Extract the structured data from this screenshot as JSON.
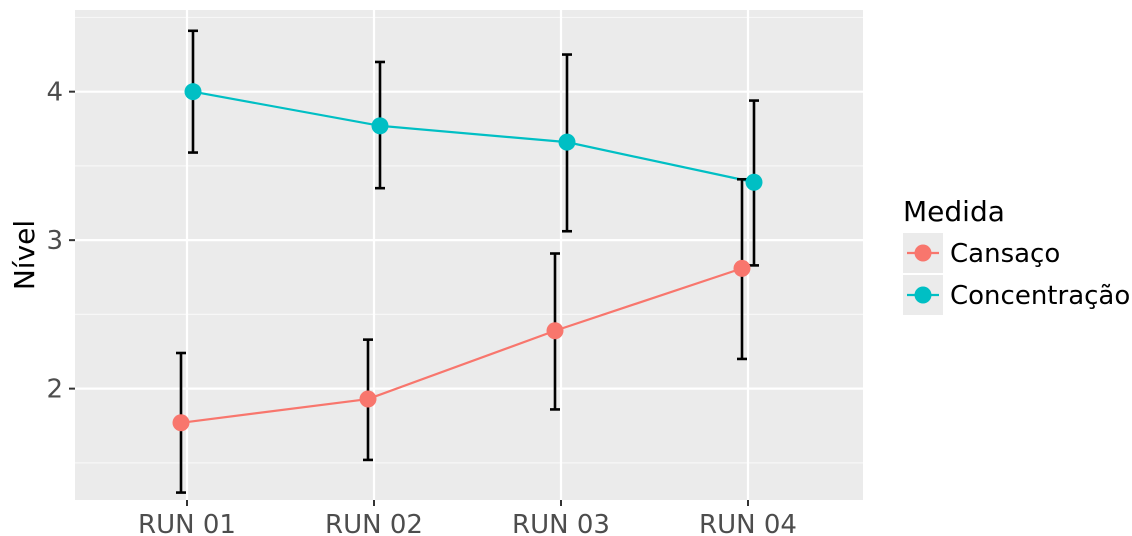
{
  "chart_data": {
    "type": "line",
    "categories": [
      "RUN 01",
      "RUN 02",
      "RUN 03",
      "RUN 04"
    ],
    "ylabel": "Nível",
    "xlabel": "",
    "ylim": [
      1.25,
      4.55
    ],
    "y_ticks": [
      "2",
      "3",
      "4"
    ],
    "grid": true,
    "legend": {
      "title": "Medida",
      "position": "right"
    },
    "error_bars": true,
    "series": [
      {
        "name": "Cansaço",
        "color": "#F8766D",
        "values": [
          1.77,
          1.93,
          2.39,
          2.81
        ],
        "error_low": [
          1.3,
          1.52,
          1.86,
          2.2
        ],
        "error_high": [
          2.24,
          2.33,
          2.91,
          3.41
        ]
      },
      {
        "name": "Concentração",
        "color": "#00BFC4",
        "values": [
          4.0,
          3.77,
          3.66,
          3.39
        ],
        "error_low": [
          3.59,
          3.35,
          3.06,
          2.83
        ],
        "error_high": [
          4.41,
          4.2,
          4.25,
          3.94
        ]
      }
    ]
  }
}
